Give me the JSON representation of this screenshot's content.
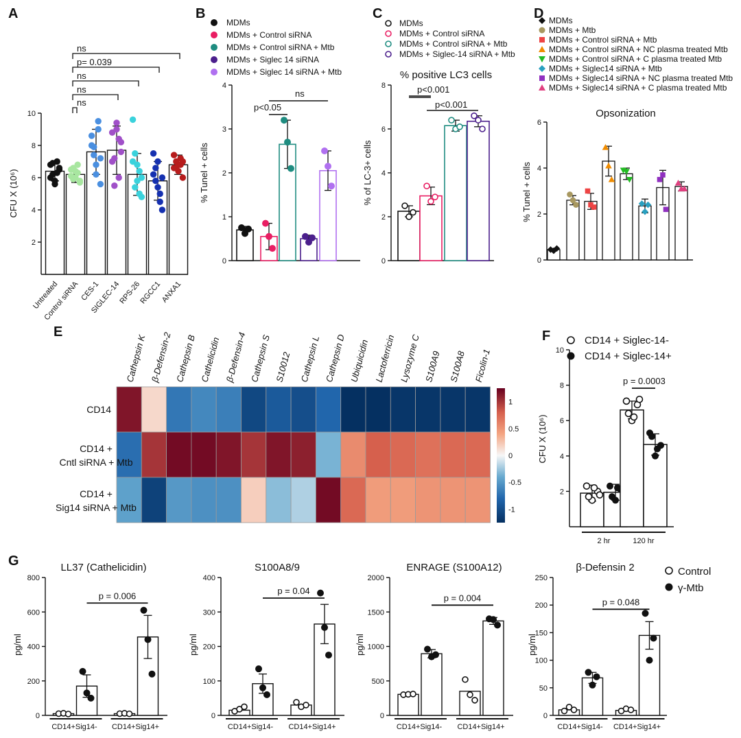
{
  "colors": {
    "black": "#111111",
    "lightgreen": "#a8e6a0",
    "blue": "#4a8fe0",
    "purple": "#a050c8",
    "cyan": "#3ad2dc",
    "darkblue": "#1530b0",
    "red": "#b71c1c",
    "pink": "#e91e63",
    "teal": "#1e8c80",
    "violet": "#4b1f8c",
    "lavender": "#b070f0",
    "olive": "#a89860",
    "tomato": "#ee4444",
    "orange": "#f08c00",
    "green": "#22bb22",
    "steel": "#2aa0c0",
    "magenta": "#9030c0",
    "rose": "#e04080"
  },
  "chart_data": [
    {
      "panel": "A",
      "type": "bar",
      "title": "",
      "xlabel": "",
      "ylabel": "CFU X (10⁶)",
      "ylim": [
        0,
        10
      ],
      "yticks": [
        2,
        4,
        6,
        8,
        10
      ],
      "categories": [
        "Untreated",
        "Control siRNA",
        "CES-1",
        "SIGLEC-14",
        "RPS-26",
        "RGCC1",
        "ANXA1"
      ],
      "values": [
        6.4,
        6.2,
        7.6,
        7.7,
        6.2,
        5.8,
        6.8
      ],
      "errors": [
        0.6,
        0.5,
        1.4,
        1.5,
        1.3,
        1.2,
        0.6
      ],
      "point_colors": [
        "black",
        "lightgreen",
        "blue",
        "purple",
        "cyan",
        "darkblue",
        "red"
      ],
      "points": [
        [
          6.8,
          6.2,
          5.6,
          7.0,
          6.5,
          6.0,
          6.9,
          5.8,
          6.3,
          6.6
        ],
        [
          6.5,
          5.9,
          6.4,
          6.8,
          5.7,
          6.1,
          6.6,
          6.0,
          6.3,
          5.8
        ],
        [
          8.6,
          7.4,
          6.2,
          9.0,
          5.6,
          8.0,
          7.9,
          6.8,
          9.5,
          7.2
        ],
        [
          8.8,
          7.2,
          9.4,
          6.0,
          8.2,
          7.0,
          5.5,
          9.0,
          8.4,
          7.6
        ],
        [
          9.6,
          7.5,
          5.8,
          6.4,
          4.8,
          7.0,
          5.4,
          6.8,
          5.0,
          6.0
        ],
        [
          7.5,
          6.6,
          5.4,
          4.5,
          4.0,
          6.2,
          5.8,
          7.0,
          5.0,
          6.0
        ],
        [
          7.4,
          6.6,
          6.8,
          7.2,
          6.0,
          6.6,
          7.0,
          6.4,
          6.8,
          7.0
        ]
      ],
      "annotations": [
        "ns",
        "ns",
        "ns",
        "p= 0.039",
        "ns"
      ]
    },
    {
      "panel": "B",
      "type": "bar",
      "title": "",
      "ylabel": "% Tunel + cells",
      "ylim": [
        0,
        4
      ],
      "yticks": [
        0,
        1,
        2,
        3,
        4
      ],
      "legend": [
        "MDMs",
        "MDMs + Control siRNA",
        "MDMs + Control siRNA + Mtb",
        "MDMs + Siglec 14 siRNA",
        "MDMs + Siglec 14 siRNA + Mtb"
      ],
      "bar_colors": [
        "black",
        "pink",
        "teal",
        "violet",
        "lavender"
      ],
      "values": [
        0.7,
        0.55,
        2.65,
        0.5,
        2.05
      ],
      "errors": [
        0.08,
        0.3,
        0.55,
        0.08,
        0.45
      ],
      "points": [
        [
          0.75,
          0.62,
          0.72
        ],
        [
          0.85,
          0.55,
          0.28
        ],
        [
          3.2,
          2.7,
          2.1
        ],
        [
          0.55,
          0.42,
          0.52
        ],
        [
          2.5,
          2.15,
          1.7
        ]
      ],
      "annotations": [
        "p<0.05",
        "ns"
      ]
    },
    {
      "panel": "C",
      "type": "bar",
      "title": "% positive LC3 cells",
      "ylabel": "% of LC-3+ cells",
      "ylim": [
        0,
        8
      ],
      "yticks": [
        0,
        2,
        4,
        6,
        8
      ],
      "legend": [
        "MDMs",
        "MDMs + Control siRNA",
        "MDMs + Control siRNA + Mtb",
        "MDMs + Siglec-14 siRNA + Mtb"
      ],
      "bar_colors": [
        "black",
        "pink",
        "teal",
        "violet"
      ],
      "values": [
        2.25,
        2.95,
        6.15,
        6.35
      ],
      "errors": [
        0.25,
        0.4,
        0.25,
        0.25
      ],
      "points": [
        [
          2.5,
          2.0,
          2.2
        ],
        [
          3.4,
          2.7,
          2.9
        ],
        [
          6.4,
          6.0,
          6.1
        ],
        [
          6.6,
          6.4,
          6.0
        ]
      ],
      "annotations": [
        "p<0.001",
        "p<0.001"
      ]
    },
    {
      "panel": "D",
      "type": "bar",
      "title": "Opsonization",
      "ylabel": "% Tunel + cells",
      "ylim": [
        0,
        6
      ],
      "yticks": [
        0,
        2,
        4,
        6
      ],
      "legend": [
        "MDMs",
        "MDMs + Mtb",
        "MDMs + Control siRNA + Mtb",
        "MDMs + Control siRNA +  NC plasma treated Mtb",
        "MDMs + Control siRNA + C plasma treated Mtb",
        "MDMs + Siglec14 siRNA + Mtb",
        "MDMs + Siglec14 siRNA + NC plasma treated Mtb",
        "MDMs + Siglec14 siRNA + C plasma treated Mtb"
      ],
      "marker_colors": [
        "black",
        "olive",
        "tomato",
        "orange",
        "green",
        "steel",
        "magenta",
        "rose"
      ],
      "markers": [
        "diamond",
        "circle",
        "square",
        "triangle-up",
        "triangle-down",
        "diamond",
        "square",
        "triangle-up"
      ],
      "values": [
        0.45,
        2.6,
        2.55,
        4.3,
        3.75,
        2.35,
        3.15,
        3.2
      ],
      "errors": [
        0.05,
        0.2,
        0.35,
        0.65,
        0.25,
        0.3,
        0.75,
        0.2
      ],
      "points": [
        [
          0.45,
          0.4,
          0.5
        ],
        [
          2.85,
          2.6,
          2.4
        ],
        [
          3.0,
          2.4,
          2.3
        ],
        [
          4.9,
          4.1,
          3.5
        ],
        [
          3.9,
          3.85,
          3.5
        ],
        [
          2.45,
          2.1,
          2.4
        ],
        [
          3.5,
          3.7,
          2.2
        ],
        [
          3.35,
          3.1,
          3.1
        ]
      ]
    },
    {
      "panel": "E",
      "type": "heatmap",
      "columns": [
        "Cathepsin K",
        "β-Defensin-2",
        "Cathepsin B",
        "Cathelicidin",
        "β-Defensin-4",
        "Cathepsin S",
        "S10012",
        "Cathepsin L",
        "Cathepsin D",
        "Ubiquicidin",
        "Lactoferricin",
        "Lysozyme C",
        "S100A9",
        "S100A8",
        "Ficolin-1"
      ],
      "rows": [
        [
          "CD14"
        ],
        [
          "CD14 +",
          "Cntl siRNA + Mtb"
        ],
        [
          "CD14 +",
          "Sig14 siRNA + Mtb"
        ]
      ],
      "values": [
        [
          1.15,
          0.15,
          -0.7,
          -0.6,
          -0.65,
          -1.05,
          -0.9,
          -1.0,
          -0.8,
          -1.25,
          -1.25,
          -1.2,
          -1.2,
          -1.2,
          -1.2
        ],
        [
          -0.75,
          1.0,
          1.2,
          1.2,
          1.15,
          1.0,
          1.15,
          1.1,
          -0.35,
          0.55,
          0.8,
          0.75,
          0.7,
          0.75,
          0.75
        ],
        [
          -0.45,
          -1.1,
          -0.5,
          -0.55,
          -0.55,
          0.2,
          -0.3,
          -0.2,
          1.2,
          0.75,
          0.45,
          0.45,
          0.5,
          0.5,
          0.5
        ]
      ],
      "colorbar_ticks": [
        1,
        0.5,
        0,
        -0.5,
        -1
      ],
      "colorbar_labels": [
        "1",
        "0.5",
        "0",
        "-0.5",
        "-1"
      ],
      "vmin": -1.25,
      "vmax": 1.25
    },
    {
      "panel": "F",
      "type": "bar",
      "ylabel": "CFU X (10⁶)",
      "ylim": [
        0,
        10
      ],
      "yticks": [
        2,
        4,
        6,
        8,
        10
      ],
      "categories": [
        "2 hr",
        "120 hr"
      ],
      "legend": [
        "CD14 + Siglec-14-",
        "CD14 + Siglec-14+"
      ],
      "series": [
        {
          "name": "CD14 + Siglec-14-",
          "marker": "open",
          "values": [
            1.9,
            6.6
          ],
          "errors": [
            0.45,
            0.5
          ],
          "points": [
            [
              2.3,
              1.5,
              2.0,
              1.7,
              2.2,
              1.8
            ],
            [
              7.1,
              6.0,
              6.9,
              6.4,
              6.2,
              7.2
            ]
          ]
        },
        {
          "name": "CD14 + Siglec-14+",
          "marker": "filled",
          "values": [
            1.95,
            4.65
          ],
          "errors": [
            0.45,
            0.6
          ],
          "points": [
            [
              2.3,
              1.5,
              2.1,
              1.7,
              2.2
            ],
            [
              5.3,
              4.0,
              4.6,
              5.1,
              4.4
            ]
          ]
        }
      ],
      "annotation": "p = 0.0003"
    },
    {
      "panel": "G",
      "type": "bar",
      "legend": [
        "Control",
        "γ-Mtb"
      ],
      "subplots": [
        {
          "title": "LL37 (Cathelicidin)",
          "ylabel": "pg/ml",
          "ylim": [
            0,
            800
          ],
          "yticks": [
            0,
            200,
            400,
            600,
            800
          ],
          "groups": [
            "CD14+Sig14-",
            "CD14+Sig14+"
          ],
          "control": [
            10,
            10
          ],
          "control_points": [
            [
              10,
              12,
              8
            ],
            [
              10,
              12,
              9
            ]
          ],
          "mtb": [
            170,
            455
          ],
          "mtb_err": [
            65,
            125
          ],
          "mtb_points": [
            [
              255,
              130,
              100
            ],
            [
              610,
              440,
              240
            ]
          ],
          "annotation": "p = 0.006"
        },
        {
          "title": "S100A8/9",
          "ylabel": "pg/ml",
          "ylim": [
            0,
            400
          ],
          "yticks": [
            0,
            100,
            200,
            300,
            400
          ],
          "groups": [
            "CD14+Sig14-",
            "CD14+Sig14+"
          ],
          "control": [
            15,
            30
          ],
          "control_points": [
            [
              12,
              18,
              25
            ],
            [
              38,
              25,
              30
            ]
          ],
          "mtb": [
            92,
            265
          ],
          "mtb_err": [
            28,
            57
          ],
          "mtb_points": [
            [
              135,
              80,
              60
            ],
            [
              355,
              255,
              175
            ]
          ],
          "annotation": "p = 0.04"
        },
        {
          "title": "ENRAGE (S100A12)",
          "ylabel": "pg/ml",
          "ylim": [
            0,
            2000
          ],
          "yticks": [
            0,
            500,
            1000,
            1500,
            2000
          ],
          "groups": [
            "CD14+Sig14-",
            "CD14+Sig14+"
          ],
          "control": [
            305,
            350
          ],
          "control_points": [
            [
              300,
              305,
              310
            ],
            [
              520,
              300,
              220
            ]
          ],
          "mtb": [
            895,
            1370
          ],
          "mtb_err": [
            60,
            50
          ],
          "mtb_points": [
            [
              960,
              850,
              880
            ],
            [
              1400,
              1390,
              1310
            ]
          ],
          "annotation": "p = 0.004"
        },
        {
          "title": "β-Defensin 2",
          "ylabel": "pg/ml",
          "ylim": [
            0,
            250
          ],
          "yticks": [
            0,
            50,
            100,
            150,
            200,
            250
          ],
          "groups": [
            "CD14+Sig14-",
            "CD14+Sig14+"
          ],
          "control": [
            10,
            9
          ],
          "control_points": [
            [
              8,
              15,
              10
            ],
            [
              8,
              12,
              10
            ]
          ],
          "mtb": [
            68,
            145
          ],
          "mtb_err": [
            10,
            25
          ],
          "mtb_points": [
            [
              78,
              55,
              70
            ],
            [
              185,
              100,
              140
            ]
          ],
          "annotation": "p = 0.048"
        }
      ]
    }
  ]
}
